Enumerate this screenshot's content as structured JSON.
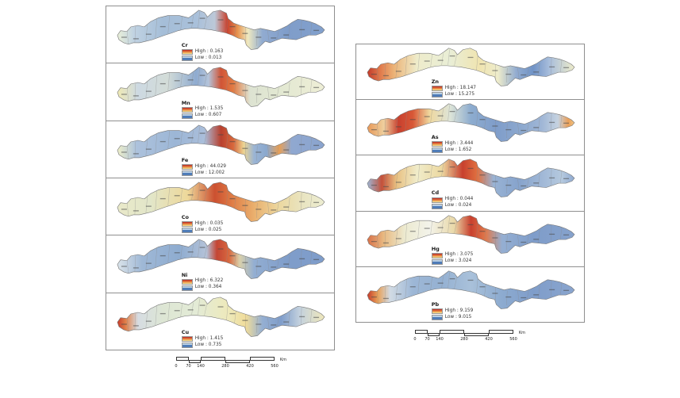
{
  "figure": {
    "legend_colors": {
      "high_top": "#c0392b",
      "high_mid": "#e8833f",
      "high_bottom": "#f2d583",
      "low_top": "#b9cfe4",
      "low_bottom": "#4f7cb8"
    },
    "left_panels": [
      {
        "metal": "Cr",
        "high": "High : 0.163",
        "low": "Low : 0.013",
        "gradient": [
          [
            0,
            "#e9efd8"
          ],
          [
            8,
            "#c0d2e2"
          ],
          [
            22,
            "#a5bed8"
          ],
          [
            38,
            "#a9c0da"
          ],
          [
            47,
            "#bcc8d8"
          ],
          [
            53,
            "#c8432f"
          ],
          [
            58,
            "#e6934f"
          ],
          [
            63,
            "#efe9c0"
          ],
          [
            70,
            "#91abd0"
          ],
          [
            82,
            "#7f9dca"
          ],
          [
            100,
            "#82a0cc"
          ]
        ]
      },
      {
        "metal": "Mn",
        "high": "High : 1.535",
        "low": "Low : 0.607",
        "gradient": [
          [
            0,
            "#efe9b4"
          ],
          [
            10,
            "#cdd9e2"
          ],
          [
            24,
            "#d3dcd8"
          ],
          [
            38,
            "#8fabd0"
          ],
          [
            44,
            "#b4c4da"
          ],
          [
            50,
            "#d05436"
          ],
          [
            56,
            "#e27c44"
          ],
          [
            64,
            "#dde3d2"
          ],
          [
            78,
            "#e2e8d2"
          ],
          [
            100,
            "#eeeed6"
          ]
        ]
      },
      {
        "metal": "Fe",
        "high": "High : 44.029",
        "low": "Low : 12.002",
        "gradient": [
          [
            0,
            "#eeefc9"
          ],
          [
            9,
            "#adc2dc"
          ],
          [
            28,
            "#9cb6d6"
          ],
          [
            42,
            "#aabeda"
          ],
          [
            50,
            "#b8402e"
          ],
          [
            56,
            "#d8683c"
          ],
          [
            61,
            "#ecd492"
          ],
          [
            66,
            "#9ab4d4"
          ],
          [
            72,
            "#8aa8ce"
          ],
          [
            78,
            "#e89f55"
          ],
          [
            84,
            "#90a8d0"
          ],
          [
            100,
            "#8aa4ce"
          ]
        ]
      },
      {
        "metal": "Co",
        "high": "High : 0.035",
        "low": "Low : 0.025",
        "gradient": [
          [
            0,
            "#e9e9c9"
          ],
          [
            16,
            "#e2e6c9"
          ],
          [
            34,
            "#eed89a"
          ],
          [
            47,
            "#cc5030"
          ],
          [
            56,
            "#e08048"
          ],
          [
            66,
            "#eab06e"
          ],
          [
            78,
            "#ecd8a0"
          ],
          [
            90,
            "#e9e5c2"
          ],
          [
            100,
            "#ededd2"
          ]
        ]
      },
      {
        "metal": "Ni",
        "high": "High : 6.322",
        "low": "Low : 0.364",
        "gradient": [
          [
            0,
            "#dae3e9"
          ],
          [
            12,
            "#9fb8d6"
          ],
          [
            30,
            "#8eacd0"
          ],
          [
            43,
            "#b4c2d8"
          ],
          [
            48,
            "#c44534"
          ],
          [
            54,
            "#d8693f"
          ],
          [
            59,
            "#d9d0aa"
          ],
          [
            66,
            "#93aed2"
          ],
          [
            82,
            "#7f9dca"
          ],
          [
            100,
            "#7f9dca"
          ]
        ]
      },
      {
        "metal": "Cu",
        "high": "High : 1.415",
        "low": "Low : 0.735",
        "gradient": [
          [
            0,
            "#c43b2b"
          ],
          [
            4,
            "#e0804a"
          ],
          [
            10,
            "#d6dce2"
          ],
          [
            22,
            "#dde6d4"
          ],
          [
            38,
            "#e3ebd6"
          ],
          [
            54,
            "#eee9ba"
          ],
          [
            62,
            "#f0dc9a"
          ],
          [
            70,
            "#95afd2"
          ],
          [
            79,
            "#7f9dca"
          ],
          [
            88,
            "#c3d1de"
          ],
          [
            100,
            "#efe7ba"
          ]
        ]
      }
    ],
    "right_panels": [
      {
        "metal": "Zn",
        "high": "High : 18.147",
        "low": "Low : 15.275",
        "gradient": [
          [
            0,
            "#c23a2b"
          ],
          [
            6,
            "#e0784a"
          ],
          [
            13,
            "#ecb478"
          ],
          [
            24,
            "#eeeccb"
          ],
          [
            40,
            "#e9eed6"
          ],
          [
            54,
            "#f0e4b0"
          ],
          [
            63,
            "#eeeccb"
          ],
          [
            72,
            "#91abd0"
          ],
          [
            80,
            "#7093c6"
          ],
          [
            88,
            "#a9bedc"
          ],
          [
            100,
            "#edebc9"
          ]
        ]
      },
      {
        "metal": "As",
        "high": "High : 3.444",
        "low": "Low : 1.652",
        "gradient": [
          [
            0,
            "#e89857"
          ],
          [
            8,
            "#eecf9e"
          ],
          [
            15,
            "#c8402e"
          ],
          [
            22,
            "#d85837"
          ],
          [
            30,
            "#efd89e"
          ],
          [
            40,
            "#dde4d8"
          ],
          [
            50,
            "#8daccf"
          ],
          [
            62,
            "#7f9dca"
          ],
          [
            74,
            "#8ca8ce"
          ],
          [
            84,
            "#9fb6d6"
          ],
          [
            92,
            "#c5d2e0"
          ],
          [
            97,
            "#ea9f58"
          ],
          [
            100,
            "#efc687"
          ]
        ]
      },
      {
        "metal": "Cd",
        "high": "High : 0.044",
        "low": "Low : 0.024",
        "gradient": [
          [
            0,
            "#9db5d4"
          ],
          [
            7,
            "#c4503a"
          ],
          [
            14,
            "#e8c081"
          ],
          [
            24,
            "#f0ecca"
          ],
          [
            36,
            "#ecd8a0"
          ],
          [
            46,
            "#c8402e"
          ],
          [
            53,
            "#e07040"
          ],
          [
            61,
            "#99b3d4"
          ],
          [
            73,
            "#86a3cc"
          ],
          [
            85,
            "#a2b9d7"
          ],
          [
            94,
            "#b5c9de"
          ],
          [
            100,
            "#8ea9d0"
          ]
        ]
      },
      {
        "metal": "Hg",
        "high": "High : 3.075",
        "low": "Low : 3.024",
        "gradient": [
          [
            0,
            "#d87048"
          ],
          [
            8,
            "#e8ba82"
          ],
          [
            18,
            "#ecead0"
          ],
          [
            30,
            "#f3f3ea"
          ],
          [
            42,
            "#e9d8a8"
          ],
          [
            50,
            "#c8402e"
          ],
          [
            57,
            "#e0784a"
          ],
          [
            65,
            "#95afd2"
          ],
          [
            80,
            "#7f9dca"
          ],
          [
            100,
            "#86a2cc"
          ]
        ]
      },
      {
        "metal": "Pb",
        "high": "High : 9.159",
        "low": "Low : 9.015",
        "gradient": [
          [
            0,
            "#c43b2b"
          ],
          [
            5,
            "#e8a057"
          ],
          [
            11,
            "#d2dbe4"
          ],
          [
            22,
            "#9db7d6"
          ],
          [
            36,
            "#95b1d2"
          ],
          [
            50,
            "#a9c1da"
          ],
          [
            64,
            "#8eacd0"
          ],
          [
            80,
            "#7f9dca"
          ],
          [
            100,
            "#8aa5ce"
          ]
        ]
      }
    ],
    "scalebar": {
      "ticks": [
        "0",
        "70",
        "140",
        "280",
        "420",
        "560"
      ],
      "unit": "Km"
    }
  }
}
